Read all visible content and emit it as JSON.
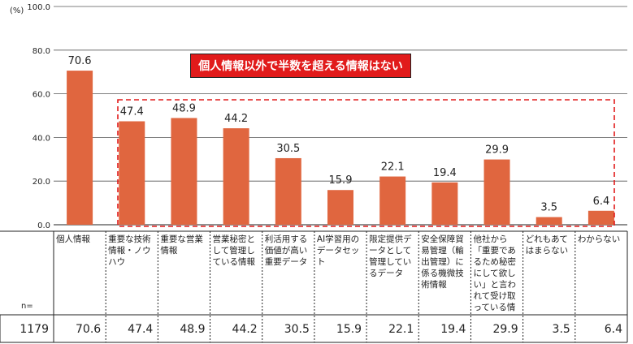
{
  "chart_data": {
    "type": "bar",
    "unit_label": "(%)",
    "ylim": [
      0,
      100
    ],
    "yticks": [
      "0.0",
      "20.0",
      "40.0",
      "60.0",
      "80.0",
      "100.0"
    ],
    "grid": true,
    "categories": [
      "個人情報",
      "重要な技術情報・ノウハウ",
      "重要な営業情報",
      "営業秘密として管理している情報",
      "利活用する価値が高い重要データ",
      "AI学習用のデータセット",
      "限定提供データとして管理しているデータ",
      "安全保障貿易管理（輸出管理）に係る機微技術情報",
      "他社から「重要であるため秘密にして欲しい」と言われて受け取っている情報",
      "どれもあてはまらない",
      "わからない"
    ],
    "values": [
      70.6,
      47.4,
      48.9,
      44.2,
      30.5,
      15.9,
      22.1,
      19.4,
      29.9,
      3.5,
      6.4
    ],
    "value_labels": [
      "70.6",
      "47.4",
      "48.9",
      "44.2",
      "30.5",
      "15.9",
      "22.1",
      "19.4",
      "29.9",
      "3.5",
      "6.4"
    ],
    "bar_color": "#e0663f",
    "annotation": "個人情報以外で半数を超える情報はない",
    "annotation_color": "#e11b1b"
  },
  "table": {
    "n_label": "n=",
    "n_value": "1179",
    "cells": [
      "70.6",
      "47.4",
      "48.9",
      "44.2",
      "30.5",
      "15.9",
      "22.1",
      "19.4",
      "29.9",
      "3.5",
      "6.4"
    ]
  }
}
